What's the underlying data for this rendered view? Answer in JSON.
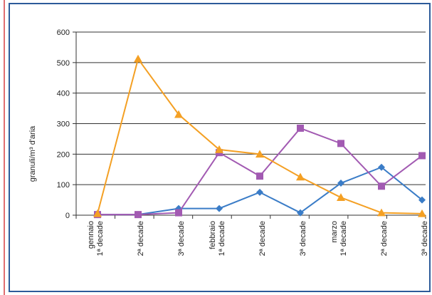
{
  "chart_data": {
    "type": "line",
    "title": "",
    "xlabel": "",
    "ylabel": "granuli/m³ d'aria",
    "ylim": [
      0,
      600
    ],
    "yticks": [
      0,
      100,
      200,
      300,
      400,
      500,
      600
    ],
    "grid": true,
    "legend": "none",
    "categories": [
      [
        "gennaio",
        "1ª decade"
      ],
      [
        "",
        "2ª decade"
      ],
      [
        "",
        "3ª decade"
      ],
      [
        "febbraio",
        "1ª decade"
      ],
      [
        "",
        "2ª decade"
      ],
      [
        "",
        "3ª decade"
      ],
      [
        "marzo",
        "1ª decade"
      ],
      [
        "",
        "2ª decade"
      ],
      [
        "",
        "3ª decade"
      ]
    ],
    "series": [
      {
        "color": "#3a7cc7",
        "marker": "diamond",
        "values": [
          2,
          2,
          22,
          22,
          75,
          8,
          105,
          157,
          50
        ]
      },
      {
        "color": "#a25ab2",
        "marker": "square",
        "values": [
          2,
          2,
          8,
          205,
          128,
          285,
          235,
          95,
          195
        ]
      },
      {
        "color": "#f4a024",
        "marker": "triangle",
        "values": [
          5,
          512,
          330,
          215,
          200,
          125,
          58,
          8,
          5
        ]
      }
    ]
  },
  "colors": {
    "frame_border": "#2d5b9a",
    "left_accent": "#e06d70",
    "grid": "#333333"
  }
}
